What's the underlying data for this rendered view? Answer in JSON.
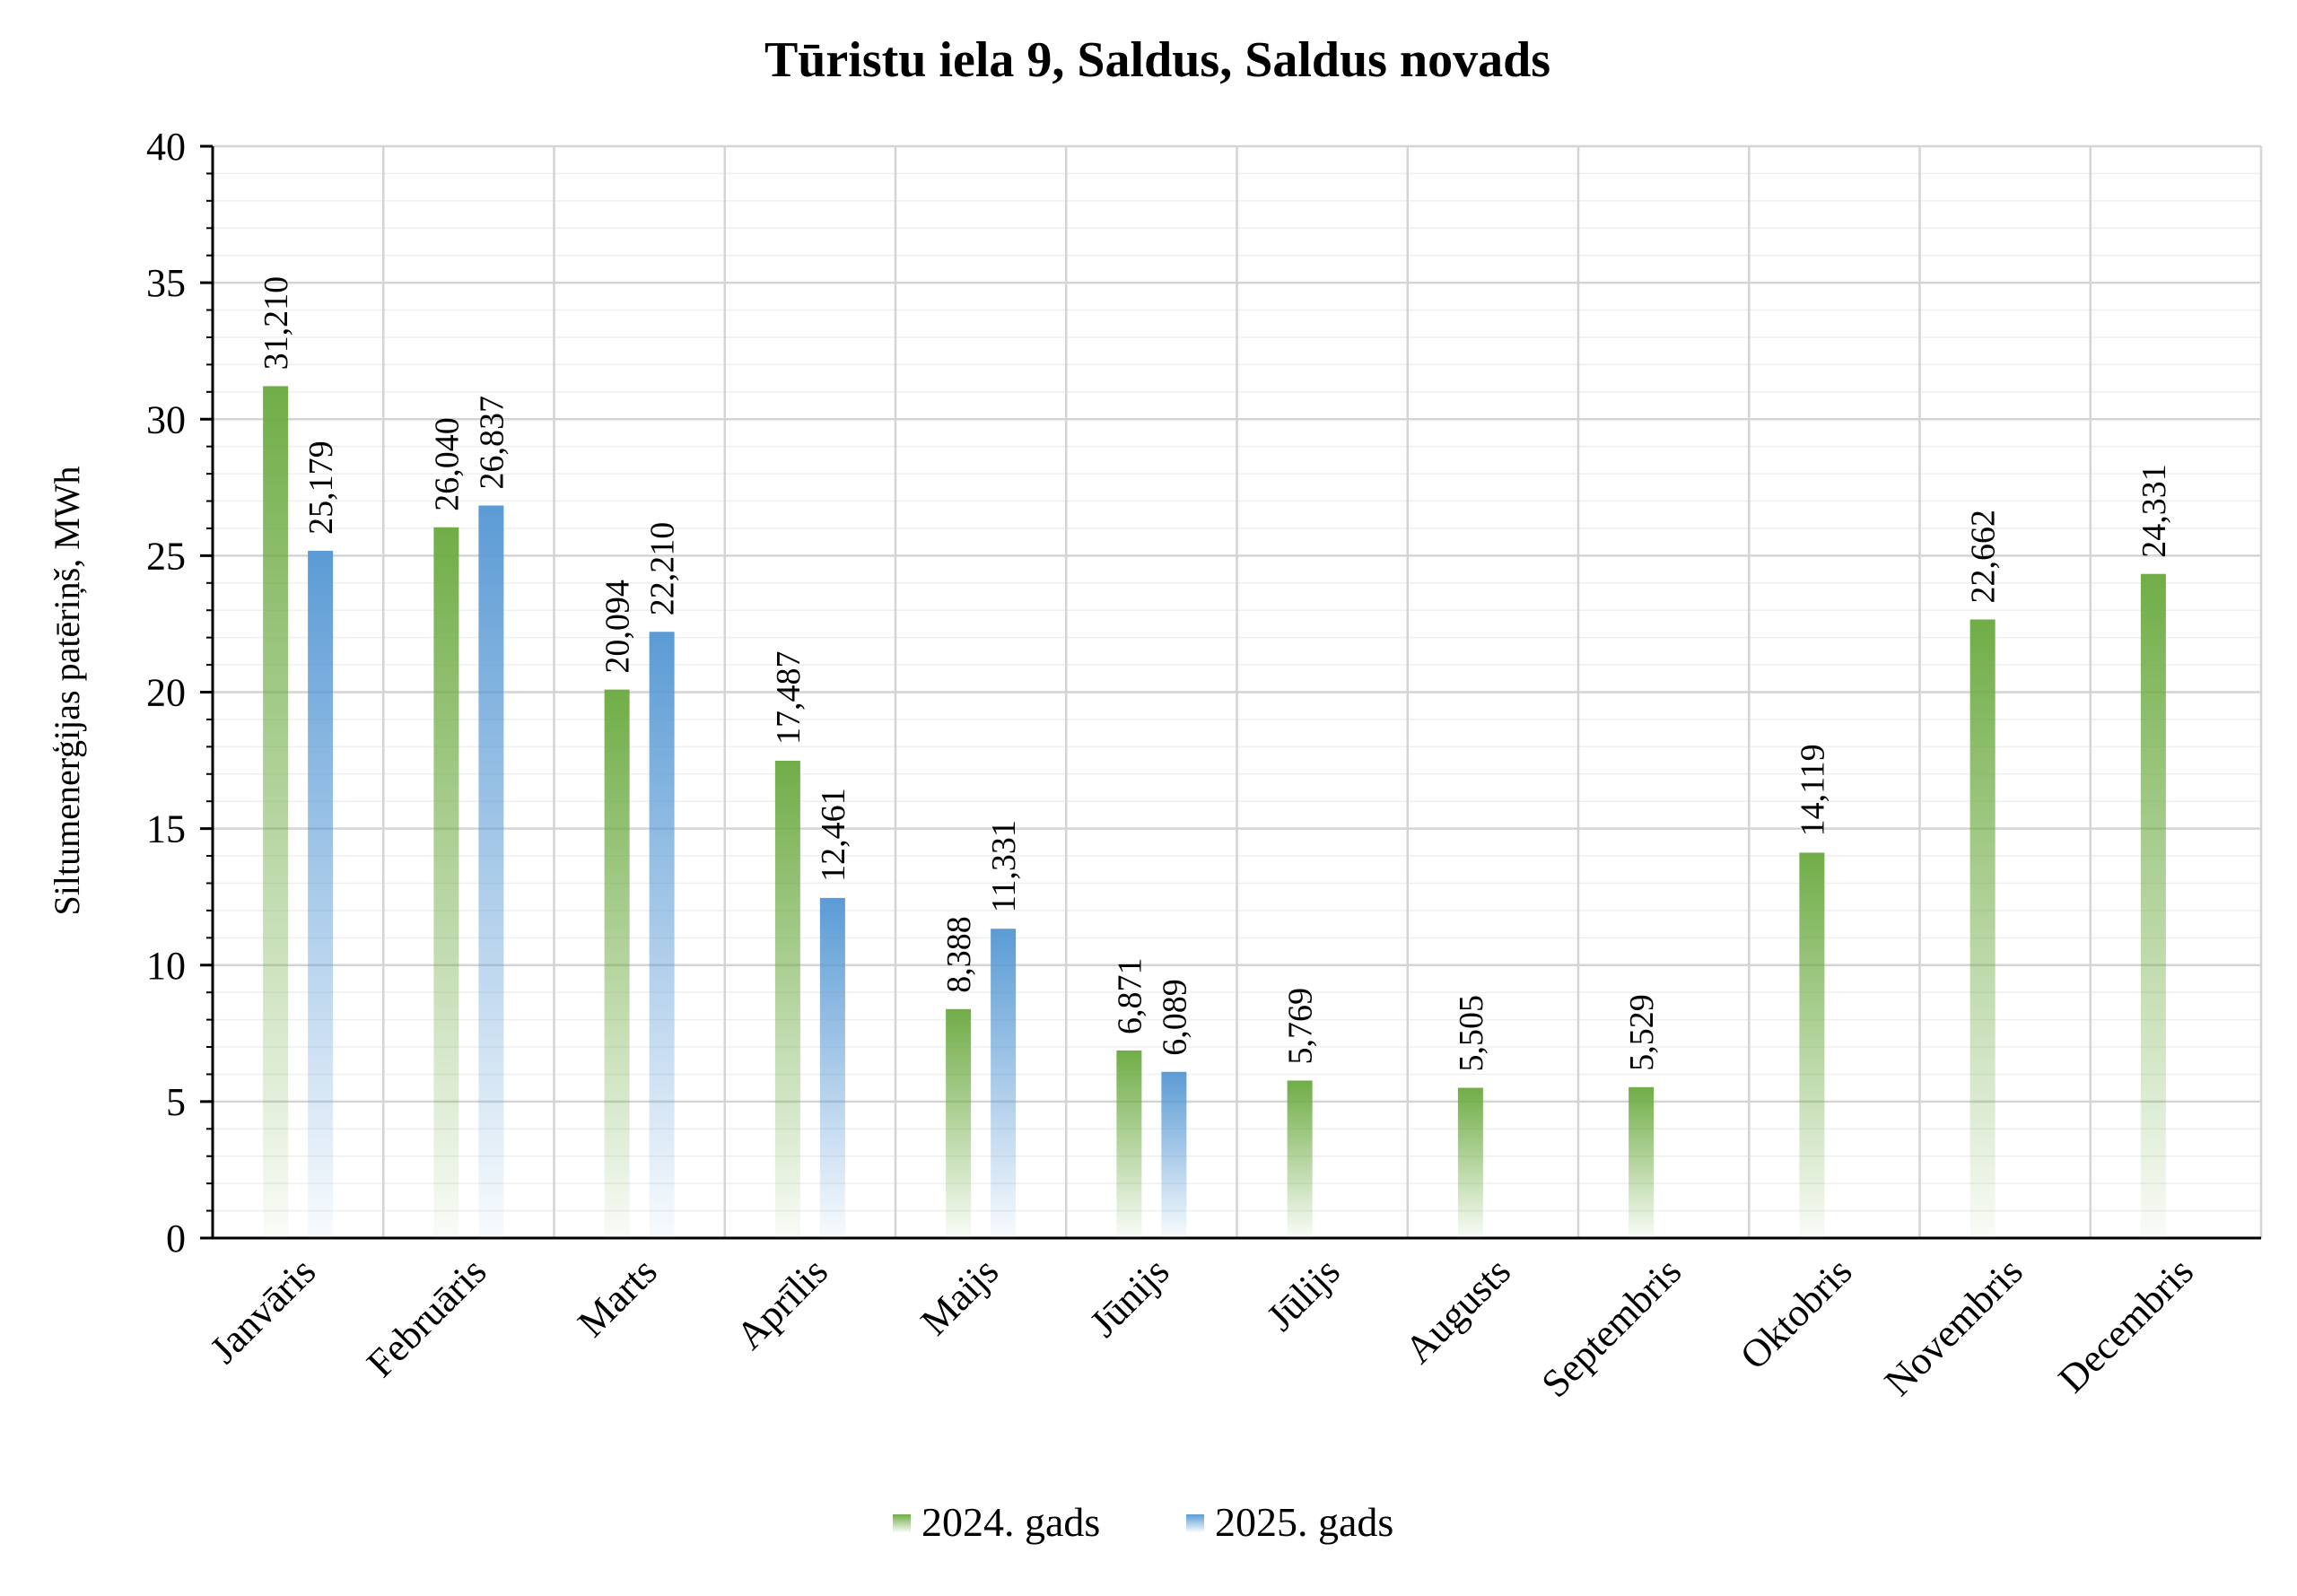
{
  "chart_data": {
    "type": "bar",
    "title": "Tūristu iela 9, Saldus, Saldus novads",
    "ylabel": "Siltumenerģijas patēriņš, MWh",
    "xlabel": "",
    "ylim": [
      0,
      40
    ],
    "yticks": [
      0,
      5,
      10,
      15,
      20,
      25,
      30,
      35,
      40
    ],
    "grid": true,
    "legend_position": "bottom",
    "categories": [
      "Janvāris",
      "Februāris",
      "Marts",
      "Aprīlis",
      "Maijs",
      "Jūnijs",
      "Jūlijs",
      "Augusts",
      "Septembris",
      "Oktobris",
      "Novembris",
      "Decembris"
    ],
    "series": [
      {
        "name": "2024. gads",
        "color": "#70ad47",
        "values": [
          31.21,
          26.04,
          20.094,
          17.487,
          8.388,
          6.871,
          5.769,
          5.505,
          5.529,
          14.119,
          22.662,
          24.331
        ],
        "labels": [
          "31,210",
          "26,040",
          "20,094",
          "17,487",
          "8,388",
          "6,871",
          "5,769",
          "5,505",
          "5,529",
          "14,119",
          "22,662",
          "24,331"
        ]
      },
      {
        "name": "2025. gads",
        "color": "#5b9bd5",
        "values": [
          25.179,
          26.837,
          22.21,
          12.461,
          11.331,
          6.089,
          null,
          null,
          null,
          null,
          null,
          null
        ],
        "labels": [
          "25,179",
          "26,837",
          "22,210",
          "12,461",
          "11,331",
          "6,089",
          "",
          "",
          "",
          "",
          "",
          ""
        ]
      }
    ]
  }
}
